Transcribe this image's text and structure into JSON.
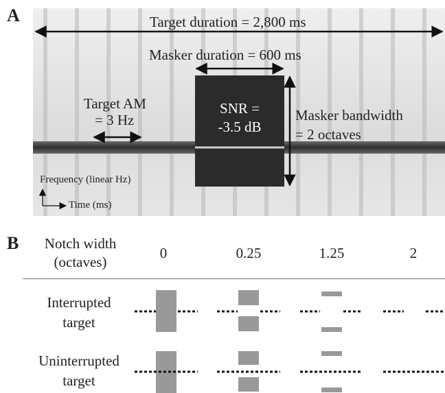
{
  "panel_a": {
    "letter": "A",
    "target_duration": "Target duration = 2,800 ms",
    "masker_duration": "Masker duration = 600 ms",
    "target_am_line1": "Target AM",
    "target_am_line2": "= 3 Hz",
    "snr_line1": "SNR =",
    "snr_line2": "-3.5 dB",
    "masker_bw_line1": "Masker bandwidth",
    "masker_bw_line2": "= 2 octaves",
    "y_axis": "Frequency (linear Hz)",
    "x_axis": "Time (ms)"
  },
  "panel_b": {
    "letter": "B",
    "header_line1": "Notch width",
    "header_line2": "(octaves)",
    "notch_widths": [
      "0",
      "0.25",
      "1.25",
      "2"
    ],
    "rows": [
      {
        "line1": "Interrupted",
        "line2": "target"
      },
      {
        "line1": "Uninterrupted",
        "line2": "target"
      }
    ]
  },
  "colors": {
    "masker": "#2b2b2b",
    "block": "#999999",
    "band": "#3a3a3a"
  }
}
